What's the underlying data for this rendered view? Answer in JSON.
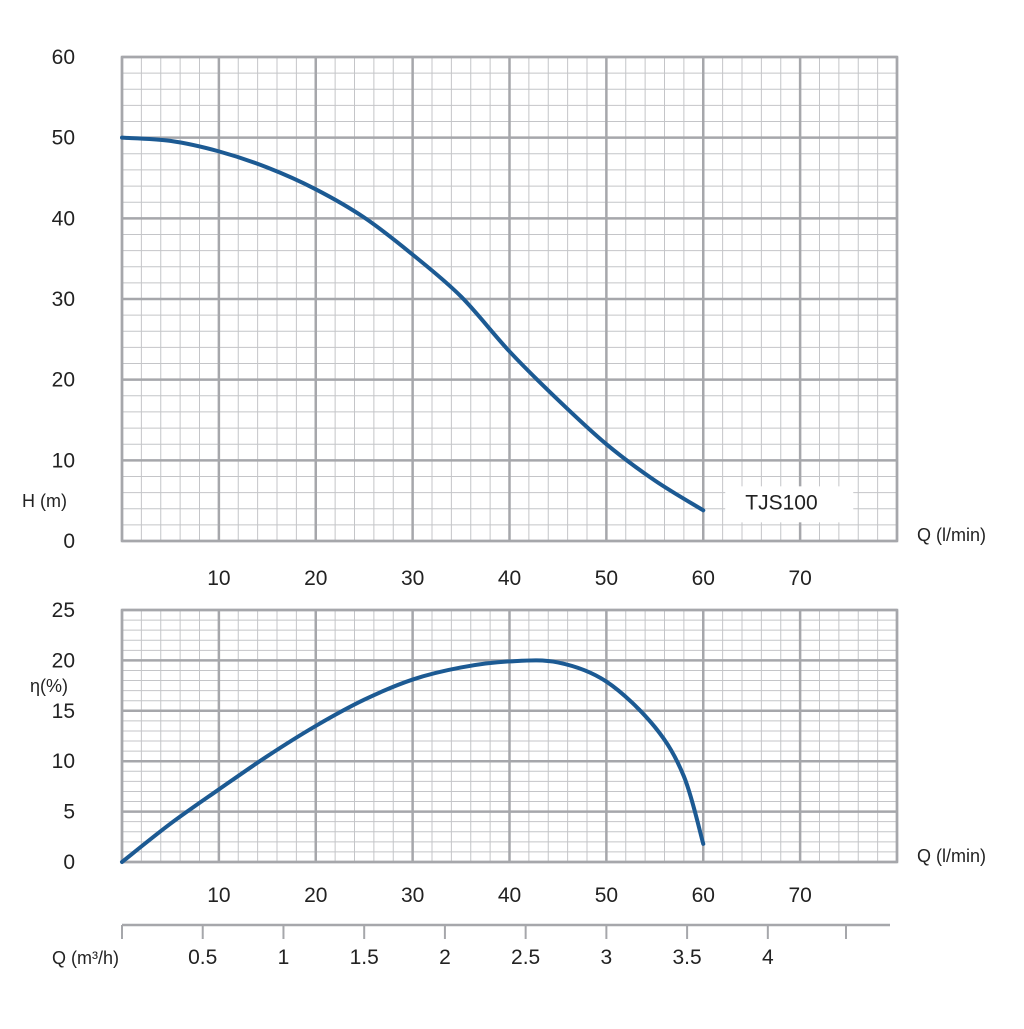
{
  "colors": {
    "curve": "#1c5a93",
    "grid_major": "#a6a7ab",
    "grid_minor": "#c4c5c8",
    "text": "#222222"
  },
  "chart_data": [
    {
      "id": "head",
      "type": "line",
      "ylabel": "H (m)",
      "xlabel": "Q (l/min)",
      "xlim": [
        0,
        80
      ],
      "ylim": [
        0,
        60
      ],
      "x_ticks": [
        10,
        20,
        30,
        40,
        50,
        60,
        70
      ],
      "y_ticks": [
        0,
        10,
        20,
        30,
        40,
        50,
        60
      ],
      "grid": true,
      "series": [
        {
          "name": "TJS100",
          "x": [
            0,
            5,
            10,
            15,
            20,
            25,
            30,
            35,
            40,
            45,
            50,
            55,
            60
          ],
          "y": [
            50,
            49.6,
            48.3,
            46.3,
            43.6,
            40.1,
            35.5,
            30.3,
            23.5,
            17.5,
            12.0,
            7.5,
            3.8
          ]
        }
      ]
    },
    {
      "id": "efficiency",
      "type": "line",
      "ylabel": "η(%)",
      "xlabel": "Q (l/min)",
      "xlim": [
        0,
        80
      ],
      "ylim": [
        0,
        25
      ],
      "x_ticks": [
        10,
        20,
        30,
        40,
        50,
        60,
        70
      ],
      "y_ticks": [
        0,
        5,
        10,
        15,
        20,
        25
      ],
      "grid": true,
      "series": [
        {
          "x": [
            0,
            5,
            10,
            15,
            20,
            25,
            30,
            35,
            40,
            45,
            50,
            55,
            58,
            60
          ],
          "y": [
            0,
            3.8,
            7.2,
            10.5,
            13.5,
            16.1,
            18.1,
            19.3,
            19.9,
            19.8,
            17.9,
            13.4,
            8.5,
            1.8
          ]
        }
      ],
      "secondary_axis": {
        "label": "Q (m³/h)",
        "ticks": [
          "0.5",
          "1",
          "1.5",
          "2",
          "2.5",
          "3",
          "3.5",
          "4"
        ],
        "tick_values": [
          0.5,
          1,
          1.5,
          2,
          2.5,
          3,
          3.5,
          4
        ]
      }
    }
  ]
}
